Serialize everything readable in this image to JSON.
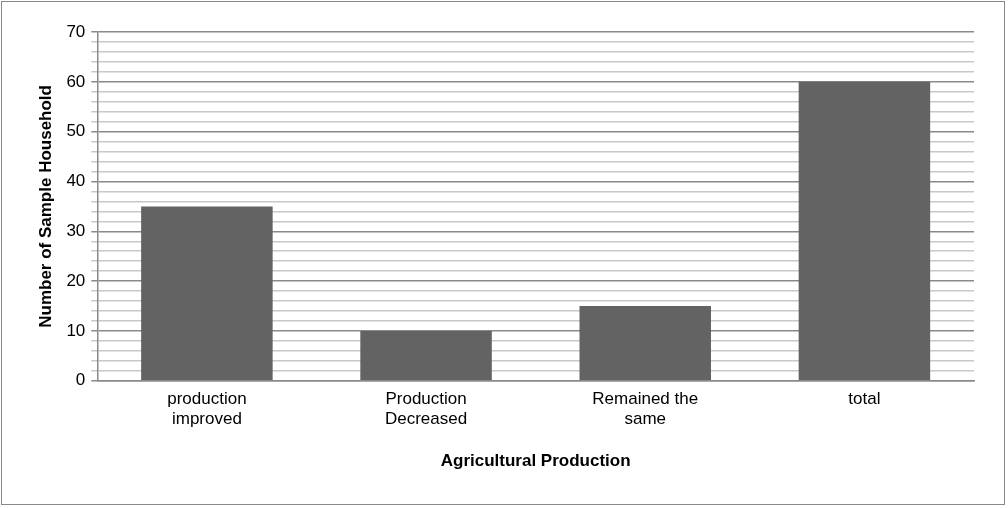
{
  "chart_data": {
    "type": "bar",
    "xlabel": "Agricultural Production",
    "ylabel": "Number of Sample Household",
    "categories": [
      "production improved",
      "Production Decreased",
      "Remained the same",
      "total"
    ],
    "values": [
      35,
      10,
      15,
      60
    ],
    "color": "#636363",
    "ylim": [
      0,
      70
    ],
    "yticks": [
      0,
      {
        "value": 2,
        "label": null
      },
      {
        "value": 4,
        "label": null
      },
      {
        "value": 6,
        "label": null
      },
      {
        "value": 8,
        "label": null
      },
      10,
      {
        "value": 12,
        "label": null
      },
      {
        "value": 14,
        "label": null
      },
      {
        "value": 16,
        "label": null
      },
      {
        "value": 18,
        "label": null
      },
      20,
      {
        "value": 22,
        "label": null
      },
      {
        "value": 24,
        "label": null
      },
      {
        "value": 26,
        "label": null
      },
      {
        "value": 28,
        "label": null
      },
      30,
      {
        "value": 32,
        "label": null
      },
      {
        "value": 34,
        "label": null
      },
      {
        "value": 36,
        "label": null
      },
      {
        "value": 38,
        "label": null
      },
      40,
      {
        "value": 42,
        "label": null
      },
      {
        "value": 44,
        "label": null
      },
      {
        "value": 46,
        "label": null
      },
      {
        "value": 48,
        "label": null
      },
      50,
      {
        "value": 52,
        "label": null
      },
      {
        "value": 54,
        "label": null
      },
      {
        "value": 56,
        "label": null
      },
      {
        "value": 58,
        "label": null
      },
      60,
      {
        "value": 62,
        "label": null
      },
      {
        "value": 64,
        "label": null
      },
      {
        "value": 66,
        "label": null
      },
      {
        "value": 68,
        "label": null
      },
      70
    ],
    "grid": "y"
  }
}
